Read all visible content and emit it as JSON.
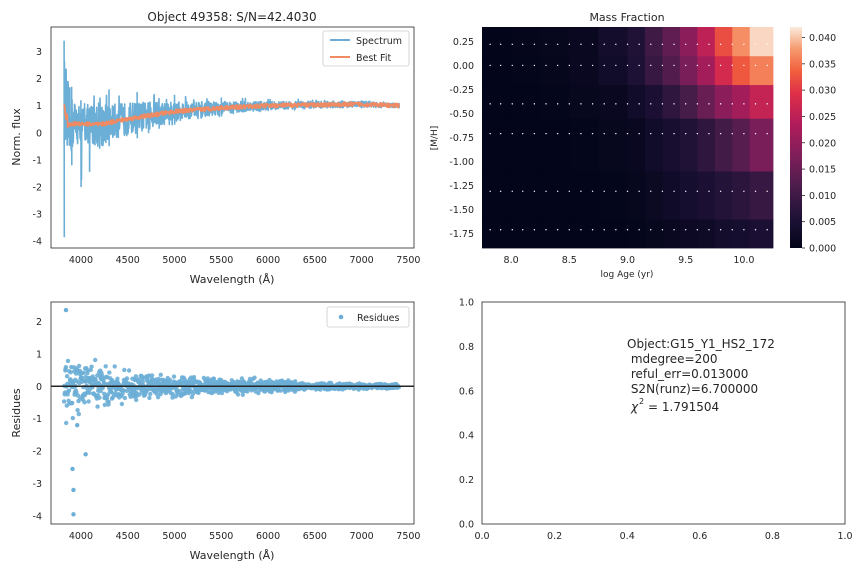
{
  "chart_data": [
    {
      "type": "line",
      "title": "Object 49358: S/N=42.4030",
      "xlabel": "Wavelength (Å)",
      "ylabel": "Norm. flux",
      "xlim": [
        3680,
        7560
      ],
      "ylim": [
        -4.25,
        3.9
      ],
      "xticks": [
        4000,
        4500,
        5000,
        5500,
        6000,
        6500,
        7000,
        7500
      ],
      "yticks": [
        -4,
        -3,
        -2,
        -1,
        0,
        1,
        2,
        3
      ],
      "legend": {
        "position": "top-right",
        "entries": [
          "Spectrum",
          "Best Fit"
        ]
      },
      "colors": {
        "spectrum": "#6baed6",
        "fit": "#f08a62"
      },
      "series": [
        {
          "name": "Spectrum",
          "x_range": [
            3820,
            7400
          ],
          "envelope_points": [
            {
              "x": 3820,
              "y": 3.4,
              "y_low": -3.85
            },
            {
              "x": 3900,
              "y": 1.7,
              "y_low": -1.2
            },
            {
              "x": 4000,
              "y": 1.2,
              "y_low": -2.0
            },
            {
              "x": 4300,
              "y": 1.6,
              "y_low": -0.5
            },
            {
              "x": 4600,
              "y": 1.5,
              "y_low": -0.2
            },
            {
              "x": 5000,
              "y": 1.4,
              "y_low": 0.3
            },
            {
              "x": 5500,
              "y": 1.3,
              "y_low": 0.6
            },
            {
              "x": 6000,
              "y": 1.25,
              "y_low": 0.8
            },
            {
              "x": 7000,
              "y": 1.2,
              "y_low": 0.9
            },
            {
              "x": 7400,
              "y": 1.1,
              "y_low": 0.9
            }
          ]
        },
        {
          "name": "Best Fit",
          "points": [
            {
              "x": 3820,
              "y": 1.0
            },
            {
              "x": 3850,
              "y": 0.25
            },
            {
              "x": 3950,
              "y": 0.35
            },
            {
              "x": 4200,
              "y": 0.3
            },
            {
              "x": 4400,
              "y": 0.45
            },
            {
              "x": 4700,
              "y": 0.62
            },
            {
              "x": 5000,
              "y": 0.78
            },
            {
              "x": 5500,
              "y": 0.92
            },
            {
              "x": 6000,
              "y": 1.0
            },
            {
              "x": 6500,
              "y": 1.03
            },
            {
              "x": 7000,
              "y": 1.05
            },
            {
              "x": 7400,
              "y": 1.0
            }
          ]
        }
      ]
    },
    {
      "type": "heatmap",
      "title": "Mass Fraction",
      "xlabel": "log Age (yr)",
      "ylabel": "[M/H]",
      "xlim": [
        7.75,
        10.25
      ],
      "ylim": [
        -1.9,
        0.4
      ],
      "xticks": [
        8.0,
        8.5,
        9.0,
        9.5,
        10.0
      ],
      "yticks": [
        -1.75,
        -1.5,
        -1.25,
        -1.0,
        -0.75,
        -0.5,
        -0.25,
        0.0,
        0.25
      ],
      "age_edges": [
        7.75,
        8.0,
        8.25,
        8.5,
        8.75,
        9.0,
        9.15,
        9.3,
        9.45,
        9.6,
        9.75,
        9.9,
        10.05,
        10.25
      ],
      "metal_edges": [
        -1.9,
        -1.6,
        -1.1,
        -0.55,
        -0.2,
        0.1,
        0.4
      ],
      "colorbar": {
        "min": 0,
        "max": 0.042,
        "ticks": [
          0.0,
          0.005,
          0.01,
          0.015,
          0.02,
          0.025,
          0.03,
          0.035,
          0.04
        ]
      },
      "values": [
        [
          0,
          0,
          0,
          0,
          0,
          0.0003,
          0.0008,
          0.0015,
          0.002,
          0.0025,
          0.0035,
          0.004,
          0.005
        ],
        [
          0,
          0,
          0,
          0,
          0.0003,
          0.0008,
          0.0018,
          0.0028,
          0.004,
          0.005,
          0.0065,
          0.0075,
          0.009
        ],
        [
          0,
          0,
          0,
          0.0003,
          0.0008,
          0.0015,
          0.003,
          0.0045,
          0.006,
          0.008,
          0.0105,
          0.013,
          0.017
        ],
        [
          0,
          0,
          0.0003,
          0.0008,
          0.0015,
          0.003,
          0.005,
          0.008,
          0.011,
          0.015,
          0.019,
          0.022,
          0.026
        ],
        [
          0,
          0.0003,
          0.0006,
          0.0012,
          0.003,
          0.0055,
          0.009,
          0.0125,
          0.017,
          0.022,
          0.028,
          0.033,
          0.036
        ],
        [
          0,
          0.0004,
          0.0008,
          0.0015,
          0.0035,
          0.006,
          0.01,
          0.014,
          0.019,
          0.025,
          0.032,
          0.037,
          0.041
        ]
      ],
      "dot_ages": [
        7.82,
        7.91,
        8.01,
        8.1,
        8.2,
        8.3,
        8.4,
        8.5,
        8.6,
        8.7,
        8.8,
        8.9,
        9.0,
        9.1,
        9.2,
        9.3,
        9.4,
        9.5,
        9.6,
        9.7,
        9.8,
        9.9,
        10.0,
        10.1,
        10.2
      ],
      "dot_metallicities": [
        -1.71,
        -1.31,
        -0.71,
        -0.4,
        0.0,
        0.22
      ]
    },
    {
      "type": "scatter",
      "xlabel": "Wavelength (Å)",
      "ylabel": "Residues",
      "xlim": [
        3680,
        7560
      ],
      "ylim": [
        -4.25,
        2.6
      ],
      "xticks": [
        4000,
        4500,
        5000,
        5500,
        6000,
        6500,
        7000,
        7500
      ],
      "yticks": [
        -4,
        -3,
        -2,
        -1,
        0,
        1,
        2
      ],
      "legend": {
        "position": "top-right",
        "entries": [
          "Residues"
        ]
      },
      "colors": {
        "points": "#6baed6",
        "zero_line": "#262626"
      },
      "reference_line_y": 0,
      "notable_points": [
        {
          "x": 3840,
          "y": 2.35
        },
        {
          "x": 3920,
          "y": -3.95
        },
        {
          "x": 3920,
          "y": -3.2
        },
        {
          "x": 3910,
          "y": -2.55
        },
        {
          "x": 4050,
          "y": -2.1
        },
        {
          "x": 3960,
          "y": -1.2
        }
      ],
      "spread_profile": [
        {
          "x": 3820,
          "amp": 1.4
        },
        {
          "x": 4000,
          "amp": 1.1
        },
        {
          "x": 4300,
          "amp": 0.8
        },
        {
          "x": 4700,
          "amp": 0.55
        },
        {
          "x": 5200,
          "amp": 0.4
        },
        {
          "x": 5800,
          "amp": 0.3
        },
        {
          "x": 6500,
          "amp": 0.15
        },
        {
          "x": 7400,
          "amp": 0.1
        }
      ]
    },
    {
      "type": "table",
      "xlim": [
        0,
        1
      ],
      "ylim": [
        0,
        1
      ],
      "xticks": [
        "0.0",
        "0.2",
        "0.4",
        "0.6",
        "0.8",
        "1.0"
      ],
      "yticks": [
        "0.0",
        "0.2",
        "0.4",
        "0.6",
        "0.8",
        "1.0"
      ],
      "info_lines": [
        "Object:G15_Y1_HS2_172",
        " mdegree=200",
        " reful_err=0.013000",
        " S2N(runz)=6.700000"
      ],
      "chi2_label": "χ",
      "chi2_value": "= 1.791504"
    }
  ]
}
